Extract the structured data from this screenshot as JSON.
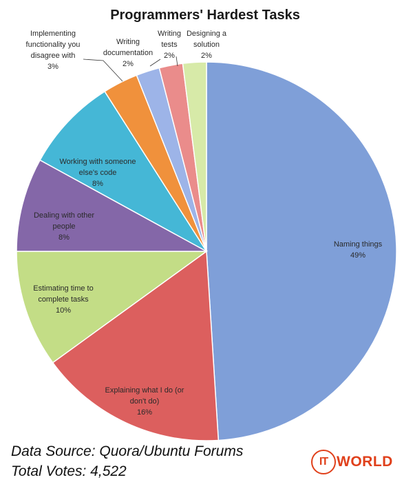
{
  "chart_data": {
    "type": "pie",
    "title": "Programmers' Hardest Tasks",
    "slices": [
      {
        "label": "Naming things",
        "value": 49,
        "pct_label": "49%",
        "color": "#7f9fd8"
      },
      {
        "label": "Explaining what I do (or don't do)",
        "value": 16,
        "pct_label": "16%",
        "color": "#dc5f5e"
      },
      {
        "label": "Estimating time to complete tasks",
        "value": 10,
        "pct_label": "10%",
        "color": "#c3dd86"
      },
      {
        "label": "Dealing with other people",
        "value": 8,
        "pct_label": "8%",
        "color": "#8467a8"
      },
      {
        "label": "Working with someone else's code",
        "value": 8,
        "pct_label": "8%",
        "color": "#45b7d6"
      },
      {
        "label": "Implementing functionality you disagree with",
        "value": 3,
        "pct_label": "3%",
        "color": "#f0913c"
      },
      {
        "label": "Writing documentation",
        "value": 2,
        "pct_label": "2%",
        "color": "#9db4e8"
      },
      {
        "label": "Writing tests",
        "value": 2,
        "pct_label": "2%",
        "color": "#ea8c8b"
      },
      {
        "label": "Designing a solution",
        "value": 2,
        "pct_label": "2%",
        "color": "#d7eaa8"
      }
    ]
  },
  "footer": {
    "source": "Data Source: Quora/Ubuntu Forums",
    "votes": "Total Votes: 4,522"
  },
  "logo": {
    "circle_text": "IT",
    "word": "WORLD",
    "color": "#e0401b"
  }
}
